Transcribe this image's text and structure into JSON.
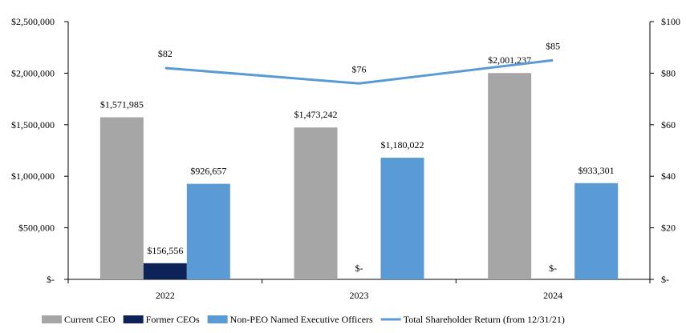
{
  "chart_data": {
    "type": "bar",
    "categories": [
      "2022",
      "2023",
      "2024"
    ],
    "series": [
      {
        "name": "Current CEO",
        "color": "#a6a6a6",
        "values": [
          1571985,
          1473242,
          2001237
        ],
        "labels": [
          "$1,571,985",
          "$1,473,242",
          "$2,001,237"
        ]
      },
      {
        "name": "Former CEOs",
        "color": "#0d2257",
        "values": [
          156556,
          0,
          0
        ],
        "labels": [
          "$156,556",
          "$-",
          "$-"
        ]
      },
      {
        "name": "Non-PEO Named Executive Officers",
        "color": "#5b9bd5",
        "values": [
          926657,
          1180022,
          933301
        ],
        "labels": [
          "$926,657",
          "$1,180,022",
          "$933,301"
        ]
      }
    ],
    "line_series": {
      "name": "Total Shareholder Return (from 12/31/21)",
      "color": "#5b9bd5",
      "values": [
        82,
        76,
        85
      ],
      "labels": [
        "$82",
        "$76",
        "$85"
      ],
      "axis": "right"
    },
    "y_left": {
      "ylim": [
        0,
        2500000
      ],
      "ticks": [
        0,
        500000,
        1000000,
        1500000,
        2000000,
        2500000
      ],
      "tick_labels": [
        "$-",
        "$500,000",
        "$1,000,000",
        "$1,500,000",
        "$2,000,000",
        "$2,500,000"
      ]
    },
    "y_right": {
      "ylim": [
        0,
        100
      ],
      "ticks": [
        0,
        20,
        40,
        60,
        80,
        100
      ],
      "tick_labels": [
        "$-",
        "$20",
        "$40",
        "$60",
        "$80",
        "$100"
      ]
    },
    "legend_position": "bottom",
    "grid": false
  }
}
